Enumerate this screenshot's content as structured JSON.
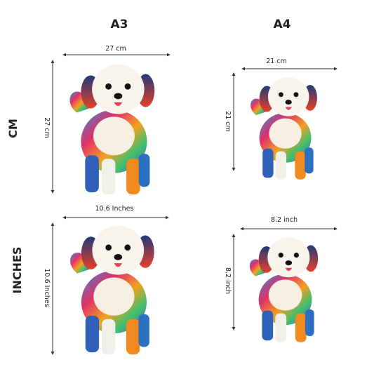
{
  "columns": [
    {
      "label": "A3"
    },
    {
      "label": "A4"
    }
  ],
  "rows": [
    {
      "label": "CM",
      "cells": [
        {
          "width": "27 cm",
          "height": "27 cm"
        },
        {
          "width": "21 cm",
          "height": "21 cm"
        }
      ]
    },
    {
      "label": "INCHES",
      "cells": [
        {
          "width": "10.6  Inches",
          "height": "10.6 Inches"
        },
        {
          "width": "8.2 inch",
          "height": "8.2 inch"
        }
      ]
    }
  ]
}
